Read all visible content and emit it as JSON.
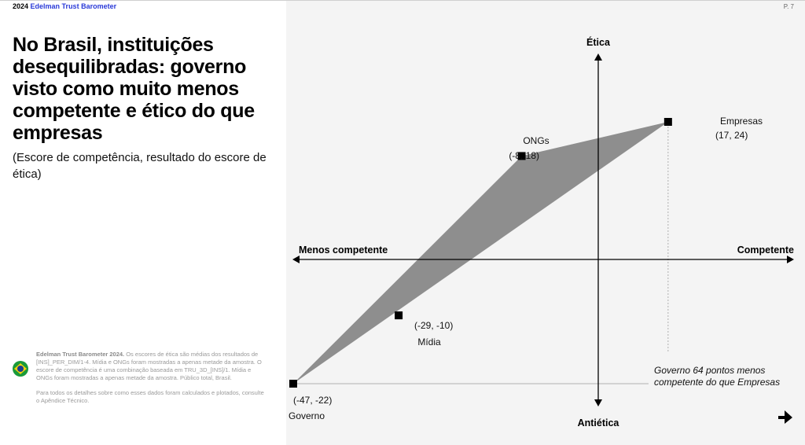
{
  "header": {
    "year": "2024",
    "brand": "Edelman Trust Barometer",
    "page": "P. 7"
  },
  "title": "No Brasil, instituições desequilibradas: governo visto como muito menos competente e ético do que empresas",
  "subtitle": "(Escore de competência, resultado do escore de ética)",
  "footnote": {
    "bold": "Edelman Trust Barometer 2024.",
    "text": " Os escores de ética são médias dos resultados de [INS]_PER_DIM/1-4. Mídia e ONGs foram mostradas a apenas metade da amostra. O escore de competência é uma combinação baseada em TRU_3D_[INS]/1. Mídia e ONGs foram mostradas a apenas metade da amostra. Público total, Brasil.",
    "link": "Para todos os detalhes sobre como esses dados foram calculados e plotados, consulte o Apêndice Técnico."
  },
  "flag_colors": {
    "green": "#1a9a3a",
    "yellow": "#f4d10a",
    "blue": "#1c3d8f"
  },
  "chart_data": {
    "type": "scatter",
    "axis_labels": {
      "top": "Ética",
      "bottom": "Antiética",
      "left": "Menos competente",
      "right": "Competente"
    },
    "xlim": [
      -47,
      24
    ],
    "ylim": [
      -26,
      31
    ],
    "points": [
      {
        "name": "Empresas",
        "label": "(17, 24)",
        "x": 17,
        "y": 24
      },
      {
        "name": "ONGs",
        "label": "(-8, 18)",
        "x": -8,
        "y": 18
      },
      {
        "name": "Mídia",
        "label": "(-29, -10)",
        "x": -29,
        "y": -10
      },
      {
        "name": "Governo",
        "label": "(-47, -22)",
        "x": -47,
        "y": -22
      }
    ],
    "polygon_order": [
      "Governo",
      "ONGs",
      "Empresas"
    ],
    "fill_color": "#8e8e8e",
    "annotation": "Governo 64 pontos menos competente do que Empresas"
  }
}
